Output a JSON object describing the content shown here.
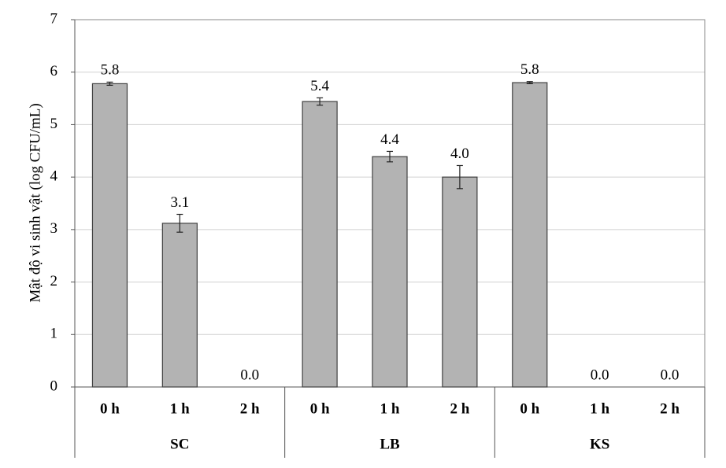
{
  "chart_data": {
    "type": "bar",
    "y_label": "Mật độ vi sinh vật (log CFU/mL)",
    "groups": [
      "SC",
      "LB",
      "KS"
    ],
    "categories": [
      "0 h",
      "1 h",
      "2 h",
      "0 h",
      "1 h",
      "2 h",
      "0 h",
      "1 h",
      "2 h"
    ],
    "values": [
      5.78,
      3.12,
      0,
      5.44,
      4.39,
      4.0,
      5.8,
      0,
      0
    ],
    "value_labels": [
      "5.8",
      "3.1",
      "0.0",
      "5.4",
      "4.4",
      "4.0",
      "5.8",
      "0.0",
      "0.0"
    ],
    "errors": [
      0.03,
      0.17,
      0,
      0.07,
      0.1,
      0.22,
      0.02,
      0,
      0
    ],
    "color": "#b3b3b3",
    "ylim": [
      0,
      7
    ],
    "yticks": [
      0,
      1,
      2,
      3,
      4,
      5,
      6,
      7
    ],
    "grid": true
  }
}
